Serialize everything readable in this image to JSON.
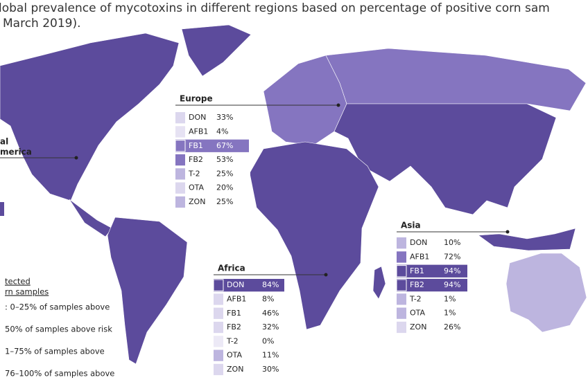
{
  "title": {
    "line1": "lobal prevalence of mycotoxins in different regions based on percentage of positive corn sam",
    "line2": "March 2019)."
  },
  "north_america": {
    "label_line1": "al",
    "label_line2": "merica"
  },
  "legend": {
    "heading_line1": "tected",
    "heading_line2": "rn samples",
    "items": [
      ": 0–25% of samples above",
      "50% of samples above risk",
      "1–75% of samples above",
      "76–100% of samples above"
    ]
  },
  "regions": [
    {
      "name": "Europe",
      "rows": [
        {
          "toxin": "DON",
          "percent": "33%",
          "color": "#dcd7ee"
        },
        {
          "toxin": "AFB1",
          "percent": "4%",
          "color": "#e6e2f3"
        },
        {
          "toxin": "FB1",
          "percent": "67%",
          "color": "#8575c0",
          "row_color": "#8575c0"
        },
        {
          "toxin": "FB2",
          "percent": "53%",
          "color": "#8575c0"
        },
        {
          "toxin": "T-2",
          "percent": "25%",
          "color": "#bdb5df"
        },
        {
          "toxin": "OTA",
          "percent": "20%",
          "color": "#dcd7ee"
        },
        {
          "toxin": "ZON",
          "percent": "25%",
          "color": "#bdb5df"
        }
      ]
    },
    {
      "name": "Africa",
      "rows": [
        {
          "toxin": "DON",
          "percent": "84%",
          "color": "#5c4b9c",
          "row_color": "#5c4b9c"
        },
        {
          "toxin": "AFB1",
          "percent": "8%",
          "color": "#dcd7ee"
        },
        {
          "toxin": "FB1",
          "percent": "46%",
          "color": "#dcd7ee"
        },
        {
          "toxin": "FB2",
          "percent": "32%",
          "color": "#dcd7ee"
        },
        {
          "toxin": "T-2",
          "percent": "0%",
          "color": "#ece9f6"
        },
        {
          "toxin": "OTA",
          "percent": "11%",
          "color": "#bdb5df"
        },
        {
          "toxin": "ZON",
          "percent": "30%",
          "color": "#dcd7ee"
        }
      ]
    },
    {
      "name": "Asia",
      "rows": [
        {
          "toxin": "DON",
          "percent": "10%",
          "color": "#bdb5df"
        },
        {
          "toxin": "AFB1",
          "percent": "72%",
          "color": "#8575c0"
        },
        {
          "toxin": "FB1",
          "percent": "94%",
          "color": "#5c4b9c",
          "row_color": "#5c4b9c"
        },
        {
          "toxin": "FB2",
          "percent": "94%",
          "color": "#5c4b9c",
          "row_color": "#5c4b9c"
        },
        {
          "toxin": "T-2",
          "percent": "1%",
          "color": "#bdb5df"
        },
        {
          "toxin": "OTA",
          "percent": "1%",
          "color": "#bdb5df"
        },
        {
          "toxin": "ZON",
          "percent": "26%",
          "color": "#dcd7ee"
        }
      ]
    }
  ]
}
